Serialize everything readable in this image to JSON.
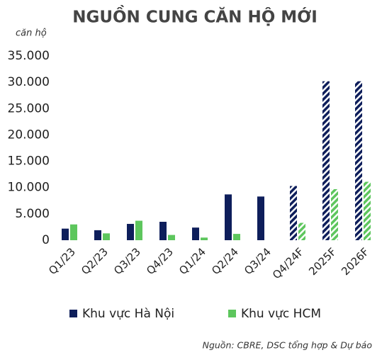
{
  "chart_data": {
    "type": "bar",
    "title": "NGUỒN CUNG CĂN HỘ MỚI",
    "y_label": "căn hộ",
    "source": "Nguồn: CBRE, DSC tổng hợp & Dự báo",
    "categories": [
      "Q1/23",
      "Q2/23",
      "Q3/23",
      "Q4/23",
      "Q1/24",
      "Q2/24",
      "Q3/24",
      "Q4/24F",
      "2025F",
      "2026F"
    ],
    "hatched": [
      false,
      false,
      false,
      false,
      false,
      false,
      false,
      true,
      true,
      true
    ],
    "series": [
      {
        "name": "Khu vực Hà Nội",
        "color": "#0e1e5b",
        "values": [
          2200,
          1900,
          3100,
          3500,
          2400,
          8700,
          8300,
          10300,
          30200,
          30200
        ]
      },
      {
        "name": "Khu vực HCM",
        "color": "#5dc65d",
        "values": [
          3000,
          1300,
          3700,
          1000,
          500,
          1200,
          0,
          3300,
          9700,
          11100
        ]
      }
    ],
    "ylim": [
      0,
      35000
    ],
    "yticks": [
      0,
      {
        "value": 5000,
        "label": "5.000"
      },
      {
        "value": 10000,
        "label": "10.000"
      },
      {
        "value": 15000,
        "label": "15.000"
      },
      {
        "value": 20000,
        "label": "20.000"
      },
      {
        "value": 25000,
        "label": "25.000"
      },
      {
        "value": 30000,
        "label": "30.000"
      },
      {
        "value": 35000,
        "label": "35.000"
      }
    ],
    "grid": false,
    "legend": "bottom"
  }
}
